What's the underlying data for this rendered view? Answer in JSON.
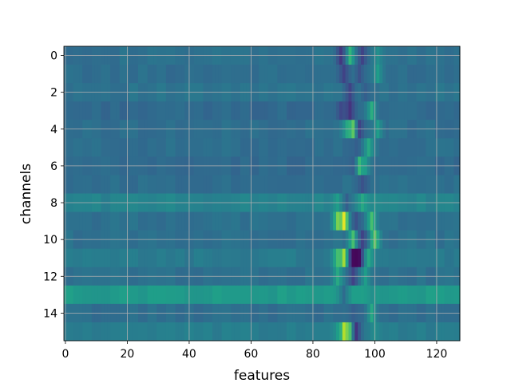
{
  "chart_data": {
    "type": "heatmap",
    "title": "",
    "xlabel": "features",
    "ylabel": "channels",
    "colormap": "viridis",
    "grid": true,
    "n_rows": 16,
    "n_cols": 128,
    "x_ticks": [
      0,
      20,
      40,
      60,
      80,
      100,
      120
    ],
    "y_ticks": [
      0,
      2,
      4,
      6,
      8,
      10,
      12,
      14
    ],
    "row_baseline": [
      0.37,
      0.36,
      0.38,
      0.34,
      0.36,
      0.36,
      0.34,
      0.36,
      0.45,
      0.37,
      0.37,
      0.41,
      0.37,
      0.54,
      0.36,
      0.42
    ],
    "hotspots": [
      {
        "row": 0,
        "col": 92,
        "value": 0.65
      },
      {
        "row": 0,
        "col": 89,
        "value": 0.16
      },
      {
        "row": 0,
        "col": 101,
        "value": 0.5
      },
      {
        "row": 0,
        "col": 96,
        "value": 0.2
      },
      {
        "row": 1,
        "col": 90,
        "value": 0.2
      },
      {
        "row": 1,
        "col": 95,
        "value": 0.25
      },
      {
        "row": 1,
        "col": 101,
        "value": 0.55
      },
      {
        "row": 2,
        "col": 92,
        "value": 0.2
      },
      {
        "row": 2,
        "col": 97,
        "value": 0.3
      },
      {
        "row": 3,
        "col": 89,
        "value": 0.22
      },
      {
        "row": 3,
        "col": 92,
        "value": 0.15
      },
      {
        "row": 3,
        "col": 99,
        "value": 0.62
      },
      {
        "row": 4,
        "col": 93,
        "value": 0.95
      },
      {
        "row": 4,
        "col": 91,
        "value": 0.6
      },
      {
        "row": 4,
        "col": 95,
        "value": 0.2
      },
      {
        "row": 4,
        "col": 101,
        "value": 0.55
      },
      {
        "row": 5,
        "col": 94,
        "value": 0.3
      },
      {
        "row": 5,
        "col": 98,
        "value": 0.6
      },
      {
        "row": 6,
        "col": 95,
        "value": 0.8
      },
      {
        "row": 6,
        "col": 93,
        "value": 0.3
      },
      {
        "row": 6,
        "col": 97,
        "value": 0.55
      },
      {
        "row": 7,
        "col": 96,
        "value": 0.25
      },
      {
        "row": 8,
        "col": 88,
        "value": 0.55
      },
      {
        "row": 8,
        "col": 91,
        "value": 0.3
      },
      {
        "row": 8,
        "col": 96,
        "value": 0.6
      },
      {
        "row": 8,
        "col": 100,
        "value": 0.5
      },
      {
        "row": 9,
        "col": 90,
        "value": 1.0
      },
      {
        "row": 9,
        "col": 88,
        "value": 0.8
      },
      {
        "row": 9,
        "col": 94,
        "value": 0.25
      },
      {
        "row": 9,
        "col": 99,
        "value": 0.7
      },
      {
        "row": 10,
        "col": 93,
        "value": 0.7
      },
      {
        "row": 10,
        "col": 100,
        "value": 0.75
      },
      {
        "row": 10,
        "col": 96,
        "value": 0.2
      },
      {
        "row": 11,
        "col": 90,
        "value": 0.9
      },
      {
        "row": 11,
        "col": 93,
        "value": 0.05
      },
      {
        "row": 11,
        "col": 94,
        "value": 0.0
      },
      {
        "row": 11,
        "col": 95,
        "value": 0.03
      },
      {
        "row": 11,
        "col": 88,
        "value": 0.7
      },
      {
        "row": 11,
        "col": 98,
        "value": 0.6
      },
      {
        "row": 12,
        "col": 88,
        "value": 0.6
      },
      {
        "row": 12,
        "col": 93,
        "value": 0.2
      },
      {
        "row": 12,
        "col": 97,
        "value": 0.55
      },
      {
        "row": 13,
        "col": 90,
        "value": 0.35
      },
      {
        "row": 13,
        "col": 99,
        "value": 0.5
      },
      {
        "row": 14,
        "col": 99,
        "value": 0.6
      },
      {
        "row": 14,
        "col": 93,
        "value": 0.3
      },
      {
        "row": 15,
        "col": 90,
        "value": 1.0
      },
      {
        "row": 15,
        "col": 92,
        "value": 0.85
      },
      {
        "row": 15,
        "col": 94,
        "value": 0.15
      },
      {
        "row": 15,
        "col": 88,
        "value": 0.55
      },
      {
        "row": 15,
        "col": 100,
        "value": 0.5
      }
    ]
  }
}
